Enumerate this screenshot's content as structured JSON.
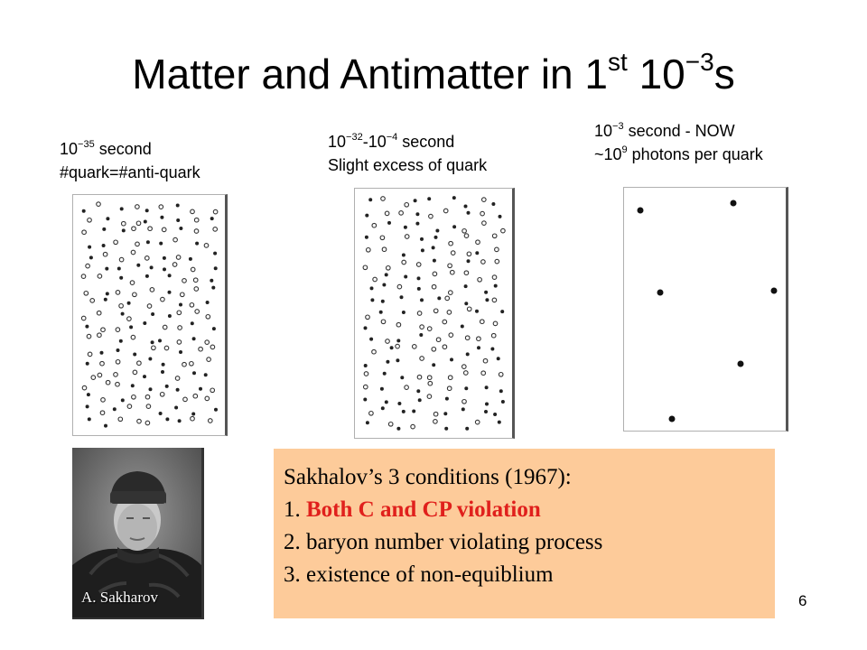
{
  "slide": {
    "title": {
      "main": "Matter and Antimatter in 1",
      "sup1": "st",
      "mid": " 10",
      "sup2": "−3",
      "end": "s"
    },
    "panels": [
      {
        "line1_base": "10",
        "line1_sup": "−35",
        "line1_rest": " second",
        "line2": "#quark=#anti-quark"
      },
      {
        "line1_base": "10",
        "line1_sup": "−32",
        "line1_mid": "-10",
        "line1_sup2": "−4",
        "line1_rest": " second",
        "line2": "Slight excess of quark"
      },
      {
        "line1_base": "10",
        "line1_sup": "−3",
        "line1_rest": " second - NOW",
        "line2_pre": "~10",
        "line2_sup": "9",
        "line2_rest": " photons per quark"
      }
    ],
    "photo_label": "A. Sakharov",
    "conditions": {
      "heading": "Sakhalov’s 3 conditions (1967):",
      "item1_num": "1. ",
      "item1_text": "Both C and CP violation",
      "item2": "2. baryon number violating process",
      "item3": "3. existence of non-equiblium"
    },
    "page_number": "6",
    "colors": {
      "conditions_bg": "#fdcb9a",
      "highlight": "#e0201c"
    }
  }
}
